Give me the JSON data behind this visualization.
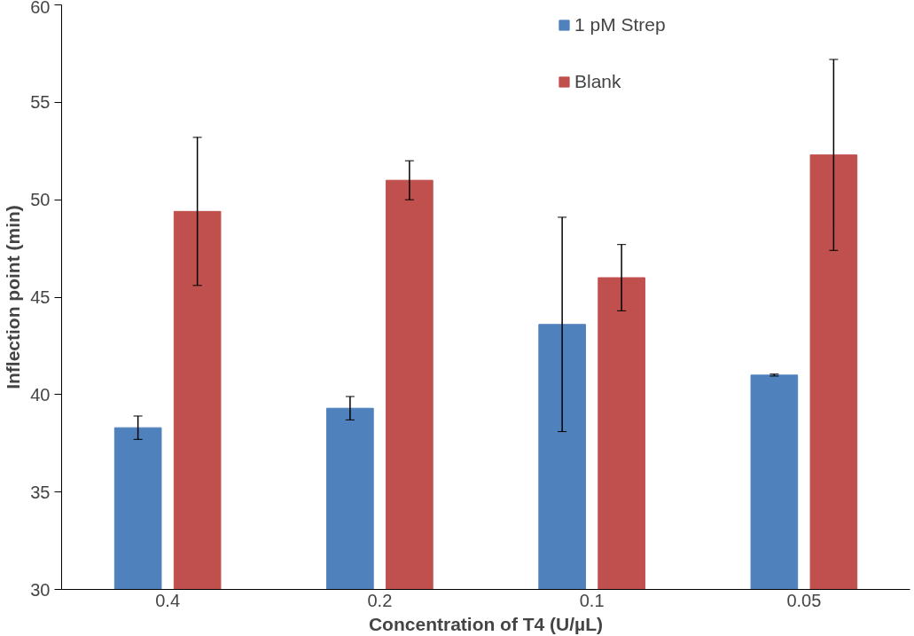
{
  "chart_data": {
    "type": "bar",
    "xlabel": "Concentration of T4 (U/µL)",
    "ylabel": "Inflection point (min)",
    "categories": [
      "0.4",
      "0.2",
      "0.1",
      "0.05"
    ],
    "series": [
      {
        "name": "1 pM Strep",
        "color": "#4f81bd",
        "values": [
          38.3,
          39.3,
          43.6,
          41.0
        ],
        "errors": [
          0.6,
          0.6,
          5.5,
          0.05
        ]
      },
      {
        "name": "Blank",
        "color": "#c0504d",
        "values": [
          49.4,
          51.0,
          46.0,
          52.3
        ],
        "errors": [
          3.8,
          1.0,
          1.7,
          4.9
        ]
      }
    ],
    "ylim": [
      30,
      60
    ],
    "yticks": [
      30,
      35,
      40,
      45,
      50,
      55,
      60
    ],
    "grid": false,
    "legend": "top right"
  }
}
